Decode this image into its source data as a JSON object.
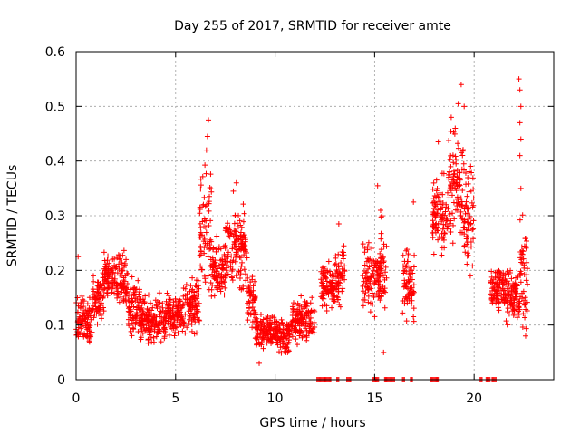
{
  "chart_data": {
    "type": "scatter",
    "title": "Day 255 of 2017, SRMTID for receiver amte",
    "xlabel": "GPS time / hours",
    "ylabel": "SRMTID / TECUs",
    "xlim": [
      0,
      24
    ],
    "ylim": [
      0,
      0.6
    ],
    "xticks": [
      0,
      5,
      10,
      15,
      20
    ],
    "xtick_labels": [
      "0",
      "5",
      "10",
      "15",
      "20"
    ],
    "yticks": [
      0,
      0.1,
      0.2,
      0.3,
      0.4,
      0.5,
      0.6
    ],
    "ytick_labels": [
      "0",
      "0.1",
      "0.2",
      "0.3",
      "0.4",
      "0.5",
      "0.6"
    ],
    "grid": true,
    "marker": "+",
    "series": [
      {
        "name": "SRMTID",
        "color": "#ff0000",
        "segments": [
          {
            "t0": 0.0,
            "t1": 0.8,
            "center": 0.11,
            "spread": 0.04
          },
          {
            "t0": 0.8,
            "t1": 1.4,
            "center": 0.15,
            "spread": 0.05
          },
          {
            "t0": 1.4,
            "t1": 2.0,
            "center": 0.19,
            "spread": 0.04
          },
          {
            "t0": 2.0,
            "t1": 2.6,
            "center": 0.18,
            "spread": 0.05
          },
          {
            "t0": 2.6,
            "t1": 3.2,
            "center": 0.13,
            "spread": 0.05
          },
          {
            "t0": 3.2,
            "t1": 4.5,
            "center": 0.11,
            "spread": 0.04
          },
          {
            "t0": 4.5,
            "t1": 5.5,
            "center": 0.12,
            "spread": 0.04
          },
          {
            "t0": 5.5,
            "t1": 6.2,
            "center": 0.14,
            "spread": 0.05
          },
          {
            "t0": 6.2,
            "t1": 6.8,
            "center": 0.27,
            "spread": 0.12
          },
          {
            "t0": 6.8,
            "t1": 7.5,
            "center": 0.2,
            "spread": 0.05
          },
          {
            "t0": 7.5,
            "t1": 8.6,
            "center": 0.24,
            "spread": 0.07
          },
          {
            "t0": 8.6,
            "t1": 9.0,
            "center": 0.15,
            "spread": 0.05
          },
          {
            "t0": 9.0,
            "t1": 10.0,
            "center": 0.09,
            "spread": 0.03
          },
          {
            "t0": 10.0,
            "t1": 10.8,
            "center": 0.08,
            "spread": 0.03
          },
          {
            "t0": 10.8,
            "t1": 12.0,
            "center": 0.11,
            "spread": 0.04
          },
          {
            "t0": 12.3,
            "t1": 13.0,
            "center": 0.17,
            "spread": 0.04
          },
          {
            "t0": 13.0,
            "t1": 13.5,
            "center": 0.19,
            "spread": 0.06
          },
          {
            "t0": 14.4,
            "t1": 15.3,
            "center": 0.19,
            "spread": 0.06
          },
          {
            "t0": 15.3,
            "t1": 15.6,
            "center": 0.2,
            "spread": 0.09
          },
          {
            "t0": 16.4,
            "t1": 17.0,
            "center": 0.18,
            "spread": 0.07
          },
          {
            "t0": 17.9,
            "t1": 18.7,
            "center": 0.3,
            "spread": 0.07
          },
          {
            "t0": 18.7,
            "t1": 19.5,
            "center": 0.35,
            "spread": 0.1
          },
          {
            "t0": 19.5,
            "t1": 20.0,
            "center": 0.3,
            "spread": 0.09
          },
          {
            "t0": 20.8,
            "t1": 21.6,
            "center": 0.17,
            "spread": 0.04
          },
          {
            "t0": 21.6,
            "t1": 22.3,
            "center": 0.15,
            "spread": 0.05
          },
          {
            "t0": 22.3,
            "t1": 22.7,
            "center": 0.18,
            "spread": 0.1
          }
        ],
        "spikes": [
          {
            "x": 6.65,
            "y": 0.475
          },
          {
            "x": 6.6,
            "y": 0.445
          },
          {
            "x": 6.55,
            "y": 0.42
          },
          {
            "x": 8.05,
            "y": 0.36
          },
          {
            "x": 7.9,
            "y": 0.345
          },
          {
            "x": 13.2,
            "y": 0.285
          },
          {
            "x": 15.15,
            "y": 0.355
          },
          {
            "x": 15.3,
            "y": 0.31
          },
          {
            "x": 15.45,
            "y": 0.05
          },
          {
            "x": 16.95,
            "y": 0.325
          },
          {
            "x": 18.2,
            "y": 0.435
          },
          {
            "x": 18.85,
            "y": 0.48
          },
          {
            "x": 19.2,
            "y": 0.505
          },
          {
            "x": 19.35,
            "y": 0.54
          },
          {
            "x": 19.5,
            "y": 0.5
          },
          {
            "x": 19.05,
            "y": 0.46
          },
          {
            "x": 22.25,
            "y": 0.55
          },
          {
            "x": 22.3,
            "y": 0.53
          },
          {
            "x": 22.35,
            "y": 0.5
          },
          {
            "x": 22.3,
            "y": 0.47
          },
          {
            "x": 22.35,
            "y": 0.44
          },
          {
            "x": 22.3,
            "y": 0.41
          },
          {
            "x": 22.35,
            "y": 0.35
          },
          {
            "x": 9.2,
            "y": 0.03
          },
          {
            "x": 0.1,
            "y": 0.225
          }
        ],
        "zero_runs": [
          [
            12.1,
            12.8
          ],
          [
            13.1,
            13.2
          ],
          [
            13.6,
            13.8
          ],
          [
            14.9,
            15.2
          ],
          [
            15.5,
            16.0
          ],
          [
            16.4,
            16.5
          ],
          [
            16.8,
            16.9
          ],
          [
            17.8,
            18.2
          ],
          [
            20.3,
            20.4
          ],
          [
            20.6,
            20.8
          ],
          [
            20.9,
            21.1
          ]
        ]
      }
    ]
  }
}
